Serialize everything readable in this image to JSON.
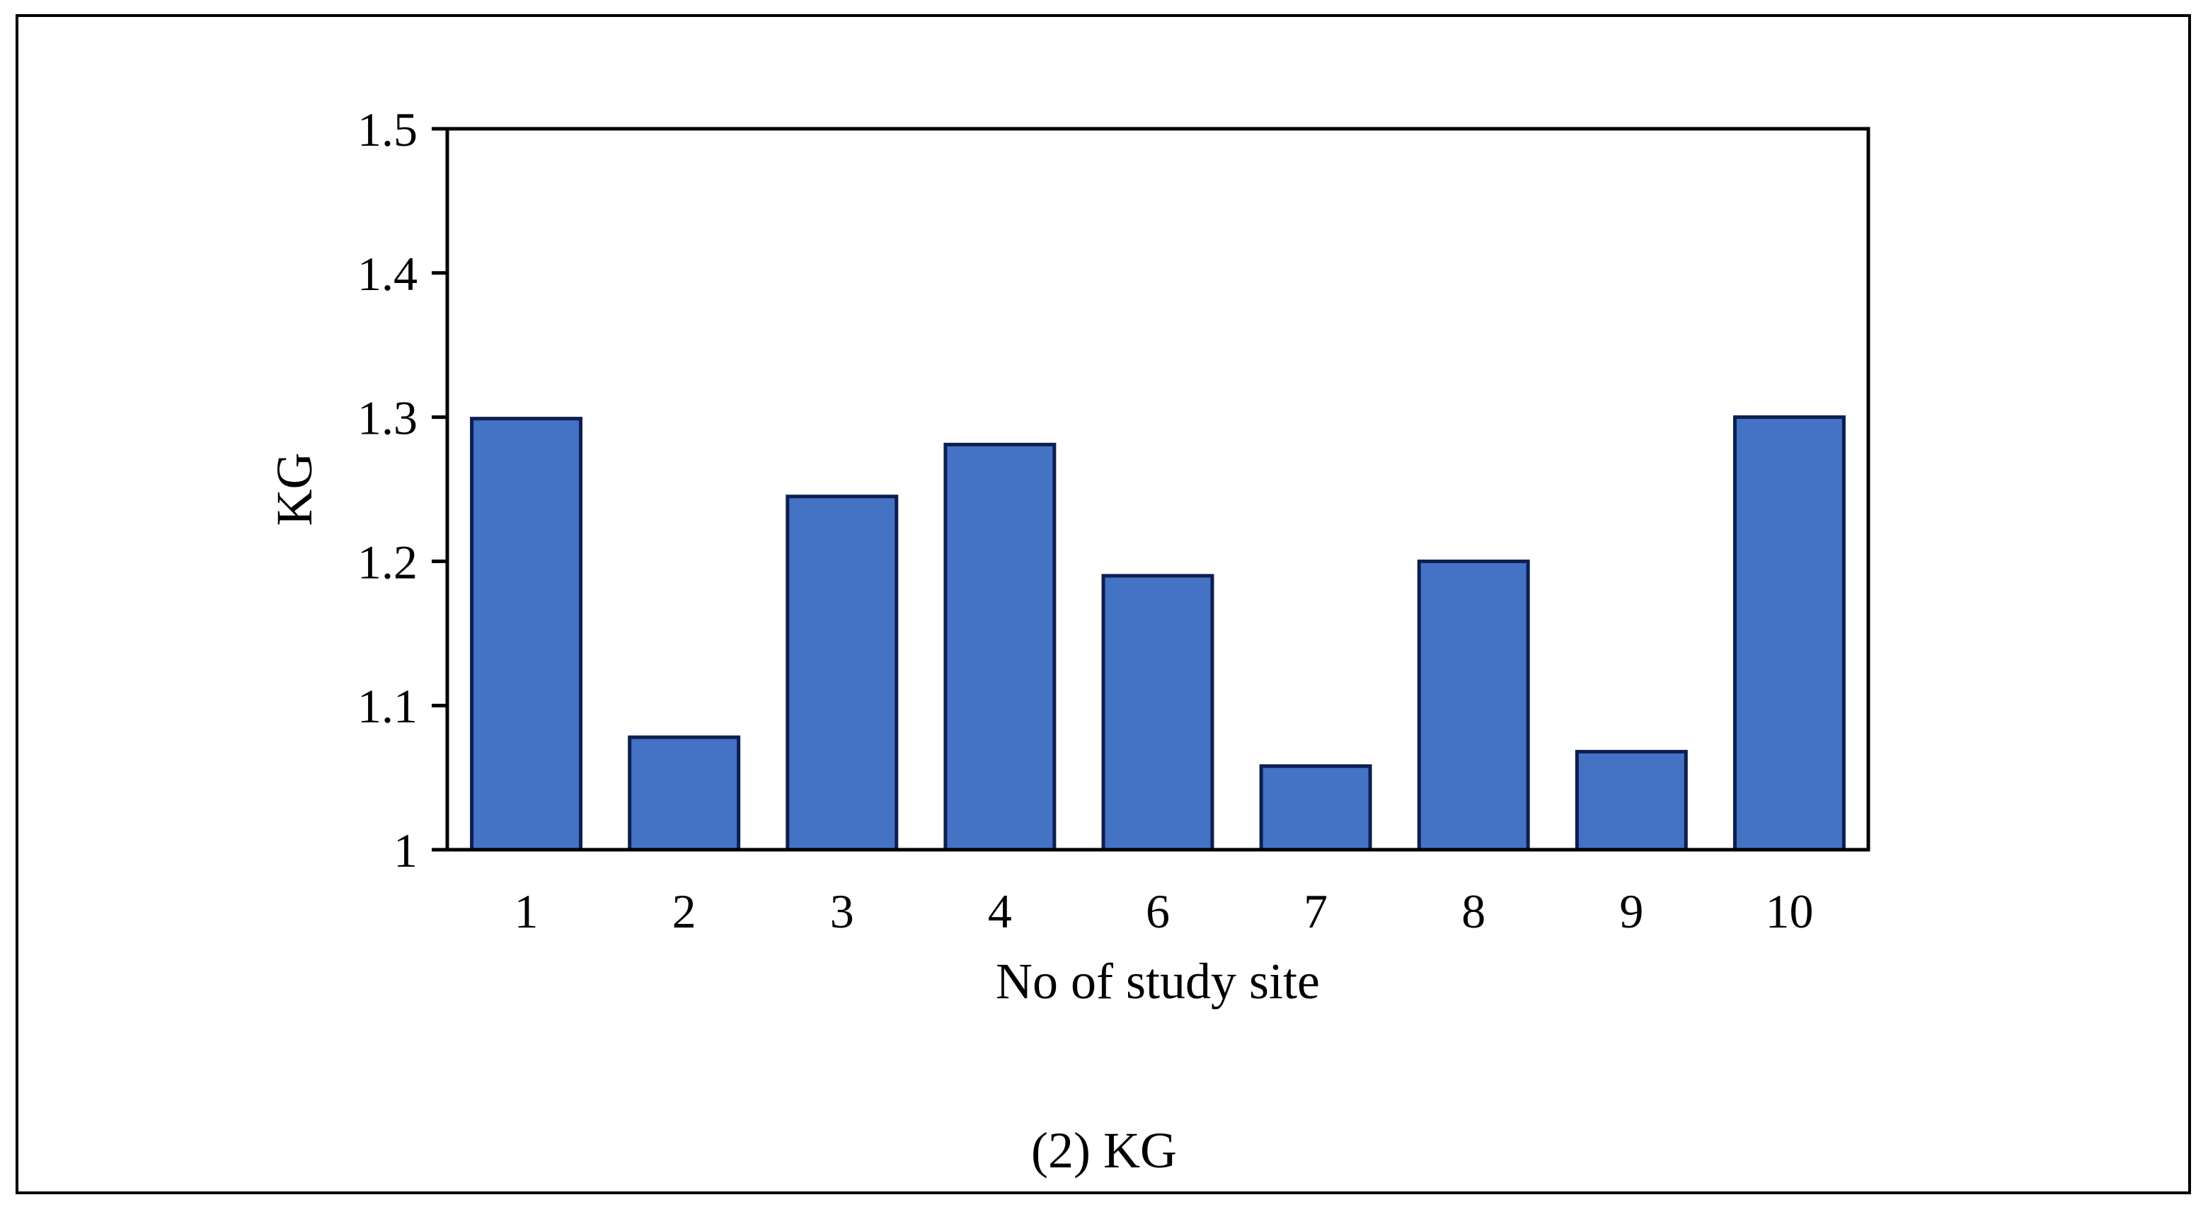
{
  "chart_data": {
    "type": "bar",
    "categories": [
      "1",
      "2",
      "3",
      "4",
      "6",
      "7",
      "8",
      "9",
      "10"
    ],
    "values": [
      1.299,
      1.078,
      1.245,
      1.281,
      1.19,
      1.058,
      1.2,
      1.068,
      1.3
    ],
    "xlabel": "No of study site",
    "ylabel": "KG",
    "ylim": [
      1,
      1.5
    ],
    "yticks": [
      "1",
      "1.1",
      "1.2",
      "1.3",
      "1.4",
      "1.5"
    ],
    "grid": false,
    "legend": "none",
    "bar_color": "#4472C4",
    "bar_edge_color": "#0D1F4F"
  },
  "caption": "(2) KG"
}
